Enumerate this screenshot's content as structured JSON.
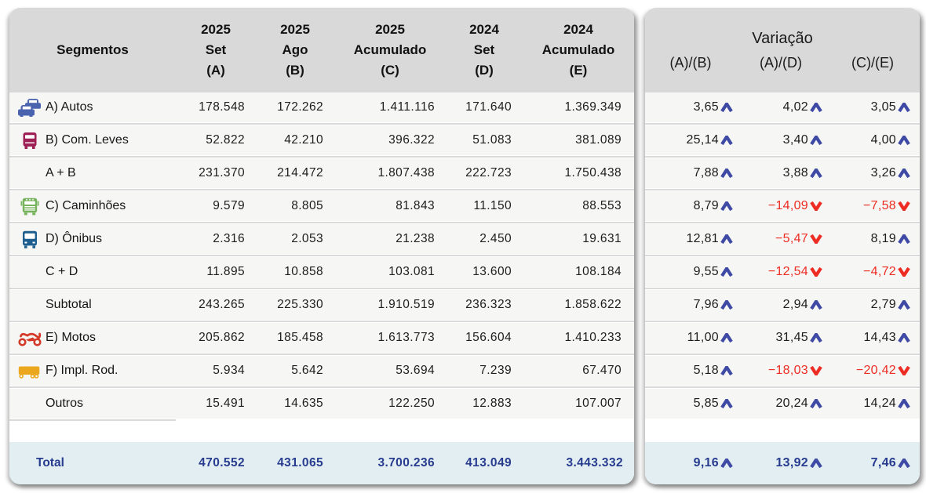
{
  "left_table": {
    "segments_header": "Segmentos",
    "columns": [
      {
        "year": "2025",
        "period": "Set",
        "key": "(A)"
      },
      {
        "year": "2025",
        "period": "Ago",
        "key": "(B)"
      },
      {
        "year": "2025",
        "period": "Acumulado",
        "key": "(C)"
      },
      {
        "year": "2024",
        "period": "Set",
        "key": "(D)"
      },
      {
        "year": "2024",
        "period": "Acumulado",
        "key": "(E)"
      }
    ]
  },
  "right_table": {
    "title": "Variação",
    "columns": [
      "(A)/(B)",
      "(A)/(D)",
      "(C)/(E)"
    ]
  },
  "rows": [
    {
      "icon": "cars-icon",
      "icon_color": "#4a63af",
      "label": "A) Autos",
      "values": [
        "178.548",
        "172.262",
        "1.411.116",
        "171.640",
        "1.369.349"
      ],
      "variations": [
        {
          "value": "3,65",
          "direction": "up"
        },
        {
          "value": "4,02",
          "direction": "up"
        },
        {
          "value": "3,05",
          "direction": "up"
        }
      ]
    },
    {
      "icon": "light-commercial-icon",
      "icon_color": "#9e2155",
      "label": "B) Com. Leves",
      "values": [
        "52.822",
        "42.210",
        "396.322",
        "51.083",
        "381.089"
      ],
      "variations": [
        {
          "value": "25,14",
          "direction": "up"
        },
        {
          "value": "3,40",
          "direction": "up"
        },
        {
          "value": "4,00",
          "direction": "up"
        }
      ]
    },
    {
      "icon": null,
      "icon_color": null,
      "label": "A + B",
      "values": [
        "231.370",
        "214.472",
        "1.807.438",
        "222.723",
        "1.750.438"
      ],
      "variations": [
        {
          "value": "7,88",
          "direction": "up"
        },
        {
          "value": "3,88",
          "direction": "up"
        },
        {
          "value": "3,26",
          "direction": "up"
        }
      ]
    },
    {
      "icon": "truck-icon",
      "icon_color": "#77b35c",
      "label": "C) Caminhões",
      "values": [
        "9.579",
        "8.805",
        "81.843",
        "11.150",
        "88.553"
      ],
      "variations": [
        {
          "value": "8,79",
          "direction": "up"
        },
        {
          "value": "-14,09",
          "direction": "down"
        },
        {
          "value": "-7,58",
          "direction": "down"
        }
      ]
    },
    {
      "icon": "bus-icon",
      "icon_color": "#1f5f90",
      "label": "D) Ônibus",
      "values": [
        "2.316",
        "2.053",
        "21.238",
        "2.450",
        "19.631"
      ],
      "variations": [
        {
          "value": "12,81",
          "direction": "up"
        },
        {
          "value": "-5,47",
          "direction": "down"
        },
        {
          "value": "8,19",
          "direction": "up"
        }
      ]
    },
    {
      "icon": null,
      "icon_color": null,
      "label": "C + D",
      "values": [
        "11.895",
        "10.858",
        "103.081",
        "13.600",
        "108.184"
      ],
      "variations": [
        {
          "value": "9,55",
          "direction": "up"
        },
        {
          "value": "-12,54",
          "direction": "down"
        },
        {
          "value": "-4,72",
          "direction": "down"
        }
      ]
    },
    {
      "icon": null,
      "icon_color": null,
      "label": "Subtotal",
      "values": [
        "243.265",
        "225.330",
        "1.910.519",
        "236.323",
        "1.858.622"
      ],
      "variations": [
        {
          "value": "7,96",
          "direction": "up"
        },
        {
          "value": "2,94",
          "direction": "up"
        },
        {
          "value": "2,79",
          "direction": "up"
        }
      ]
    },
    {
      "icon": "motorcycle-icon",
      "icon_color": "#d43a28",
      "label": "E) Motos",
      "values": [
        "205.862",
        "185.458",
        "1.613.773",
        "156.604",
        "1.410.233"
      ],
      "variations": [
        {
          "value": "11,00",
          "direction": "up"
        },
        {
          "value": "31,45",
          "direction": "up"
        },
        {
          "value": "14,43",
          "direction": "up"
        }
      ]
    },
    {
      "icon": "trailer-icon",
      "icon_color": "#eba81f",
      "label": "F) Impl. Rod.",
      "values": [
        "5.934",
        "5.642",
        "53.694",
        "7.239",
        "67.470"
      ],
      "variations": [
        {
          "value": "5,18",
          "direction": "up"
        },
        {
          "value": "-18,03",
          "direction": "down"
        },
        {
          "value": "-20,42",
          "direction": "down"
        }
      ]
    },
    {
      "icon": null,
      "icon_color": null,
      "label": "Outros",
      "values": [
        "15.491",
        "14.635",
        "122.250",
        "12.883",
        "107.007"
      ],
      "variations": [
        {
          "value": "5,85",
          "direction": "up"
        },
        {
          "value": "20,24",
          "direction": "up"
        },
        {
          "value": "14,24",
          "direction": "up"
        }
      ]
    }
  ],
  "total": {
    "label": "Total",
    "values": [
      "470.552",
      "431.065",
      "3.700.236",
      "413.049",
      "3.443.332"
    ],
    "variations": [
      {
        "value": "9,16",
        "direction": "up"
      },
      {
        "value": "13,92",
        "direction": "up"
      },
      {
        "value": "7,46",
        "direction": "up"
      }
    ]
  },
  "colors": {
    "header_bg": "#d9d9d9",
    "row_bg": "#f6f7f5",
    "total_bg": "#e2eef2",
    "up_arrow": "#3f4aa5",
    "down_arrow": "#ed2c23",
    "negative_text": "#ed2c23",
    "positive_text": "#1d1d1d",
    "total_text": "#283c8f",
    "total_arrow": "#3f4aa5"
  },
  "chart_data": {
    "type": "table",
    "title": "Emplacamentos por segmento — 2025 Set vs Ago vs 2024 e acumulados, com variações",
    "columns": [
      "Segmentos",
      "2025 Set (A)",
      "2025 Ago (B)",
      "2025 Acumulado (C)",
      "2024 Set (D)",
      "2024 Acumulado (E)",
      "Variação (A)/(B)",
      "Variação (A)/(D)",
      "Variação (C)/(E)"
    ],
    "rows": [
      [
        "A) Autos",
        178548,
        172262,
        1411116,
        171640,
        1369349,
        3.65,
        4.02,
        3.05
      ],
      [
        "B) Com. Leves",
        52822,
        42210,
        396322,
        51083,
        381089,
        25.14,
        3.4,
        4.0
      ],
      [
        "A + B",
        231370,
        214472,
        1807438,
        222723,
        1750438,
        7.88,
        3.88,
        3.26
      ],
      [
        "C) Caminhões",
        9579,
        8805,
        81843,
        11150,
        88553,
        8.79,
        -14.09,
        -7.58
      ],
      [
        "D) Ônibus",
        2316,
        2053,
        21238,
        2450,
        19631,
        12.81,
        -5.47,
        8.19
      ],
      [
        "C + D",
        11895,
        10858,
        103081,
        13600,
        108184,
        9.55,
        -12.54,
        -4.72
      ],
      [
        "Subtotal",
        243265,
        225330,
        1910519,
        236323,
        1858622,
        7.96,
        2.94,
        2.79
      ],
      [
        "E) Motos",
        205862,
        185458,
        1613773,
        156604,
        1410233,
        11.0,
        31.45,
        14.43
      ],
      [
        "F) Impl. Rod.",
        5934,
        5642,
        53694,
        7239,
        67470,
        5.18,
        -18.03,
        -20.42
      ],
      [
        "Outros",
        15491,
        14635,
        122250,
        12883,
        107007,
        5.85,
        20.24,
        14.24
      ],
      [
        "Total",
        470552,
        431065,
        3700236,
        413049,
        3443332,
        9.16,
        13.92,
        7.46
      ]
    ]
  }
}
